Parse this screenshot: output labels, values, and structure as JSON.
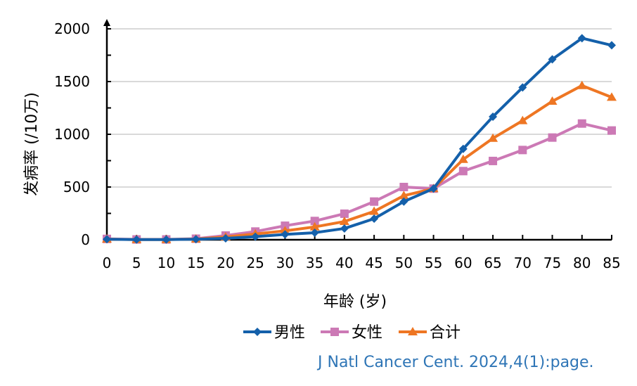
{
  "chart_data": {
    "type": "line",
    "title": "",
    "xlabel": "年龄 (岁)",
    "ylabel": "发病率 (/10万)",
    "x": [
      0,
      5,
      10,
      15,
      20,
      25,
      30,
      35,
      40,
      45,
      50,
      55,
      60,
      65,
      70,
      75,
      80,
      85
    ],
    "ylim": [
      0,
      2000
    ],
    "yticks": [
      0,
      500,
      1000,
      1500,
      2000
    ],
    "grid": true,
    "legend_position": "bottom",
    "series": [
      {
        "name": "男性",
        "color": "#1460aa",
        "marker": "diamond",
        "values": [
          5,
          2,
          2,
          5,
          13,
          29,
          51,
          67,
          107,
          200,
          362,
          485,
          862,
          1167,
          1444,
          1711,
          1911,
          1844
        ]
      },
      {
        "name": "女性",
        "color": "#cc79b5",
        "marker": "square",
        "values": [
          8,
          3,
          3,
          10,
          40,
          78,
          133,
          178,
          247,
          362,
          500,
          485,
          651,
          747,
          851,
          969,
          1102,
          1036
        ]
      },
      {
        "name": "合计",
        "color": "#ee7623",
        "marker": "triangle",
        "values": [
          6,
          2,
          2,
          7,
          27,
          55,
          84,
          122,
          173,
          269,
          418,
          485,
          762,
          962,
          1129,
          1313,
          1462,
          1351
        ]
      }
    ]
  },
  "source_text": "J Natl Cancer Cent. 2024,4(1):page."
}
